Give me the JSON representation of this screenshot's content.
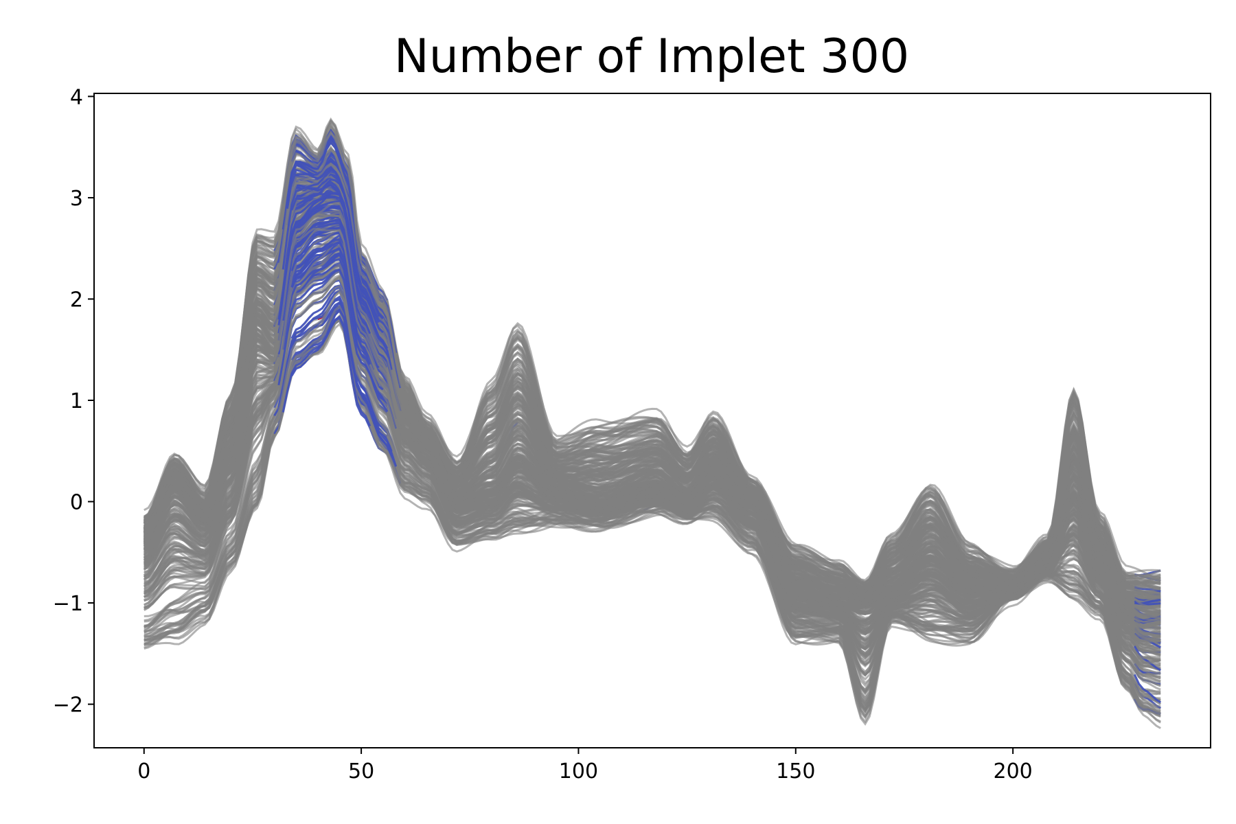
{
  "chart_data": {
    "type": "line",
    "title": "Number of Implet 300",
    "xlabel": "",
    "ylabel": "",
    "xlim": [
      -11.5,
      245.5
    ],
    "ylim": [
      -2.43,
      4.03
    ],
    "x_ticks": [
      0,
      50,
      100,
      150,
      200
    ],
    "x_tick_labels": [
      "0",
      "50",
      "100",
      "150",
      "200"
    ],
    "y_ticks": [
      -2,
      -1,
      0,
      1,
      2,
      3,
      4
    ],
    "y_tick_labels": [
      "−2",
      "−1",
      "0",
      "1",
      "2",
      "3",
      "4"
    ],
    "grid": false,
    "legend": "none",
    "n_series": 300,
    "series_color": "#808080",
    "highlight_colors": [
      "#3b4cc0",
      "#b40426"
    ],
    "x_length": 235,
    "median_series": {
      "x": [
        0,
        7,
        14,
        20,
        26,
        30,
        35,
        40,
        45,
        50,
        55,
        60,
        65,
        72,
        80,
        86,
        95,
        105,
        118,
        125,
        131,
        140,
        150,
        160,
        166,
        172,
        181,
        190,
        200,
        208,
        214,
        220,
        226,
        230,
        234
      ],
      "y": [
        -0.4,
        0.1,
        -0.2,
        0.4,
        1.7,
        1.5,
        2.7,
        2.9,
        2.9,
        1.9,
        1.5,
        0.8,
        0.55,
        0.0,
        0.1,
        0.4,
        0.1,
        0.0,
        0.15,
        0.0,
        0.3,
        0.0,
        -0.9,
        -1.0,
        -1.0,
        -0.9,
        -0.6,
        -0.9,
        -0.85,
        -0.6,
        0.1,
        -0.6,
        -1.1,
        -1.2,
        -1.2
      ]
    },
    "upper_envelope": {
      "x": [
        0,
        7,
        14,
        20,
        26,
        30,
        35,
        40,
        43,
        47,
        50,
        55,
        60,
        65,
        72,
        80,
        86,
        95,
        105,
        118,
        125,
        131,
        140,
        150,
        160,
        166,
        172,
        181,
        190,
        200,
        208,
        214,
        220,
        226,
        230,
        234
      ],
      "y": [
        -0.2,
        0.4,
        0.05,
        1.0,
        2.6,
        2.55,
        3.6,
        3.4,
        3.7,
        3.3,
        2.4,
        2.0,
        1.15,
        0.75,
        0.35,
        1.1,
        1.65,
        0.55,
        0.7,
        0.8,
        0.45,
        0.8,
        0.15,
        -0.5,
        -0.65,
        -0.85,
        -0.4,
        0.1,
        -0.5,
        -0.75,
        -0.4,
        1.05,
        -0.2,
        -0.75,
        -0.75,
        -0.75
      ]
    },
    "lower_envelope": {
      "x": [
        0,
        7,
        14,
        20,
        26,
        30,
        35,
        40,
        45,
        50,
        55,
        60,
        65,
        72,
        80,
        86,
        95,
        105,
        118,
        125,
        131,
        140,
        150,
        160,
        166,
        172,
        181,
        190,
        200,
        208,
        214,
        220,
        226,
        230,
        234
      ],
      "y": [
        -1.4,
        -1.3,
        -1.1,
        -0.6,
        0.0,
        0.7,
        1.4,
        1.55,
        1.85,
        0.95,
        0.55,
        0.15,
        0.05,
        -0.4,
        -0.3,
        -0.2,
        -0.15,
        -0.2,
        -0.05,
        -0.15,
        -0.1,
        -0.4,
        -1.3,
        -1.3,
        -2.07,
        -1.15,
        -1.3,
        -1.3,
        -0.9,
        -0.7,
        -0.85,
        -1.05,
        -1.8,
        -2.05,
        -2.12
      ]
    }
  }
}
